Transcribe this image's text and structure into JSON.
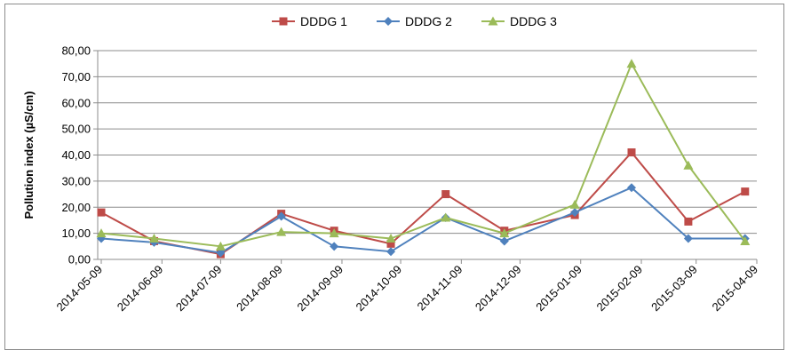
{
  "chart_data": {
    "type": "line",
    "title": "",
    "xlabel": "",
    "ylabel": "Pollution index (µS/cm)",
    "ylim": [
      0,
      80
    ],
    "yticks": [
      "0,00",
      "10,00",
      "20,00",
      "30,00",
      "40,00",
      "50,00",
      "60,00",
      "70,00",
      "80,00"
    ],
    "xticks": [
      "2014-05-09",
      "2014-06-09",
      "2014-07-09",
      "2014-08-09",
      "2014-09-09",
      "2014-10-09",
      "2014-11-09",
      "2014-12-09",
      "2015-01-09",
      "2015-02-09",
      "2015-03-09",
      "2015-04-09"
    ],
    "grid": "horizontal",
    "legend": "top-center",
    "series": [
      {
        "name": "DDDG 1",
        "color": "#be4b48",
        "marker": "square",
        "points": [
          {
            "x": "2014-05-09",
            "y": 18.0
          },
          {
            "x": "2014-06-05",
            "y": 7.0
          },
          {
            "x": "2014-07-09",
            "y": 2.0
          },
          {
            "x": "2014-08-09",
            "y": 17.5
          },
          {
            "x": "2014-09-05",
            "y": 11.0
          },
          {
            "x": "2014-10-04",
            "y": 6.0
          },
          {
            "x": "2014-11-01",
            "y": 25.0
          },
          {
            "x": "2014-12-01",
            "y": 11.0
          },
          {
            "x": "2015-01-06",
            "y": 17.0
          },
          {
            "x": "2015-02-04",
            "y": 41.0
          },
          {
            "x": "2015-03-05",
            "y": 14.5
          },
          {
            "x": "2015-04-03",
            "y": 26.0
          }
        ]
      },
      {
        "name": "DDDG 2",
        "color": "#4f81bd",
        "marker": "diamond",
        "points": [
          {
            "x": "2014-05-09",
            "y": 8.0
          },
          {
            "x": "2014-06-05",
            "y": 6.5
          },
          {
            "x": "2014-07-09",
            "y": 2.5
          },
          {
            "x": "2014-08-09",
            "y": 16.5
          },
          {
            "x": "2014-09-05",
            "y": 5.0
          },
          {
            "x": "2014-10-04",
            "y": 3.0
          },
          {
            "x": "2014-11-01",
            "y": 16.0
          },
          {
            "x": "2014-12-01",
            "y": 7.0
          },
          {
            "x": "2015-01-06",
            "y": 18.0
          },
          {
            "x": "2015-02-04",
            "y": 27.5
          },
          {
            "x": "2015-03-05",
            "y": 8.0
          },
          {
            "x": "2015-04-03",
            "y": 8.0
          }
        ]
      },
      {
        "name": "DDDG 3",
        "color": "#9bbb59",
        "marker": "triangle",
        "points": [
          {
            "x": "2014-05-09",
            "y": 10.0
          },
          {
            "x": "2014-06-05",
            "y": 8.0
          },
          {
            "x": "2014-07-09",
            "y": 5.0
          },
          {
            "x": "2014-08-09",
            "y": 10.5
          },
          {
            "x": "2014-09-05",
            "y": 10.0
          },
          {
            "x": "2014-10-04",
            "y": 8.0
          },
          {
            "x": "2014-11-01",
            "y": 16.0
          },
          {
            "x": "2014-12-01",
            "y": 10.0
          },
          {
            "x": "2015-01-06",
            "y": 21.0
          },
          {
            "x": "2015-02-04",
            "y": 75.0
          },
          {
            "x": "2015-03-05",
            "y": 36.0
          },
          {
            "x": "2015-04-03",
            "y": 7.0
          }
        ]
      }
    ]
  }
}
